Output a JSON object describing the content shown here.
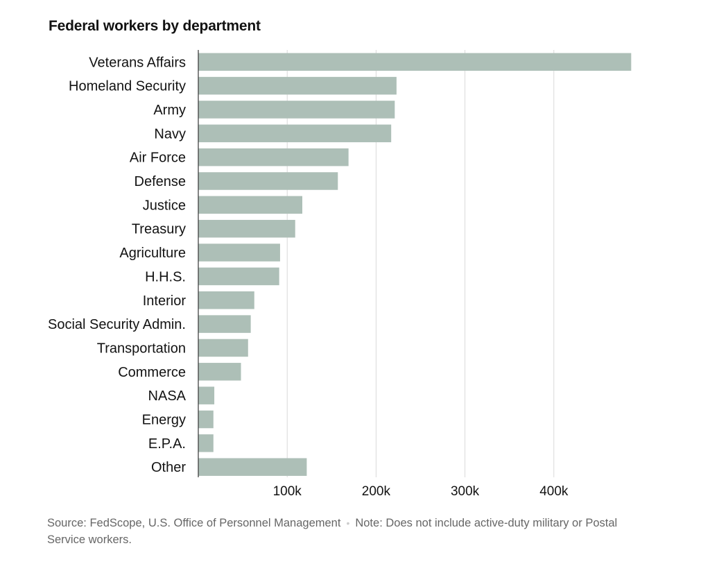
{
  "title": "Federal workers by department",
  "chart_data": {
    "type": "bar",
    "orientation": "horizontal",
    "title": "Federal workers by department",
    "xlabel": "",
    "ylabel": "",
    "categories": [
      "Veterans Affairs",
      "Homeland Security",
      "Army",
      "Navy",
      "Air Force",
      "Defense",
      "Justice",
      "Treasury",
      "Agriculture",
      "H.H.S.",
      "Interior",
      "Social Security Admin.",
      "Transportation",
      "Commerce",
      "NASA",
      "Energy",
      "E.P.A.",
      "Other"
    ],
    "values": [
      487000,
      223000,
      221000,
      217000,
      169000,
      157000,
      117000,
      109000,
      92000,
      91000,
      63000,
      59000,
      56000,
      48000,
      18000,
      17000,
      17000,
      122000
    ],
    "xlim": [
      0,
      487000
    ],
    "xticks": [
      100000,
      200000,
      300000,
      400000
    ],
    "xtick_labels": [
      "100k",
      "200k",
      "300k",
      "400k"
    ],
    "grid": true,
    "bar_color": "#adbfb7",
    "grid_color": "#d9d9d9",
    "axis_color": "#333333"
  },
  "footer": {
    "source": "Source: FedScope, U.S. Office of Personnel Management",
    "separator": "•",
    "note": "Note: Does not include active-duty military or Postal Service workers."
  }
}
